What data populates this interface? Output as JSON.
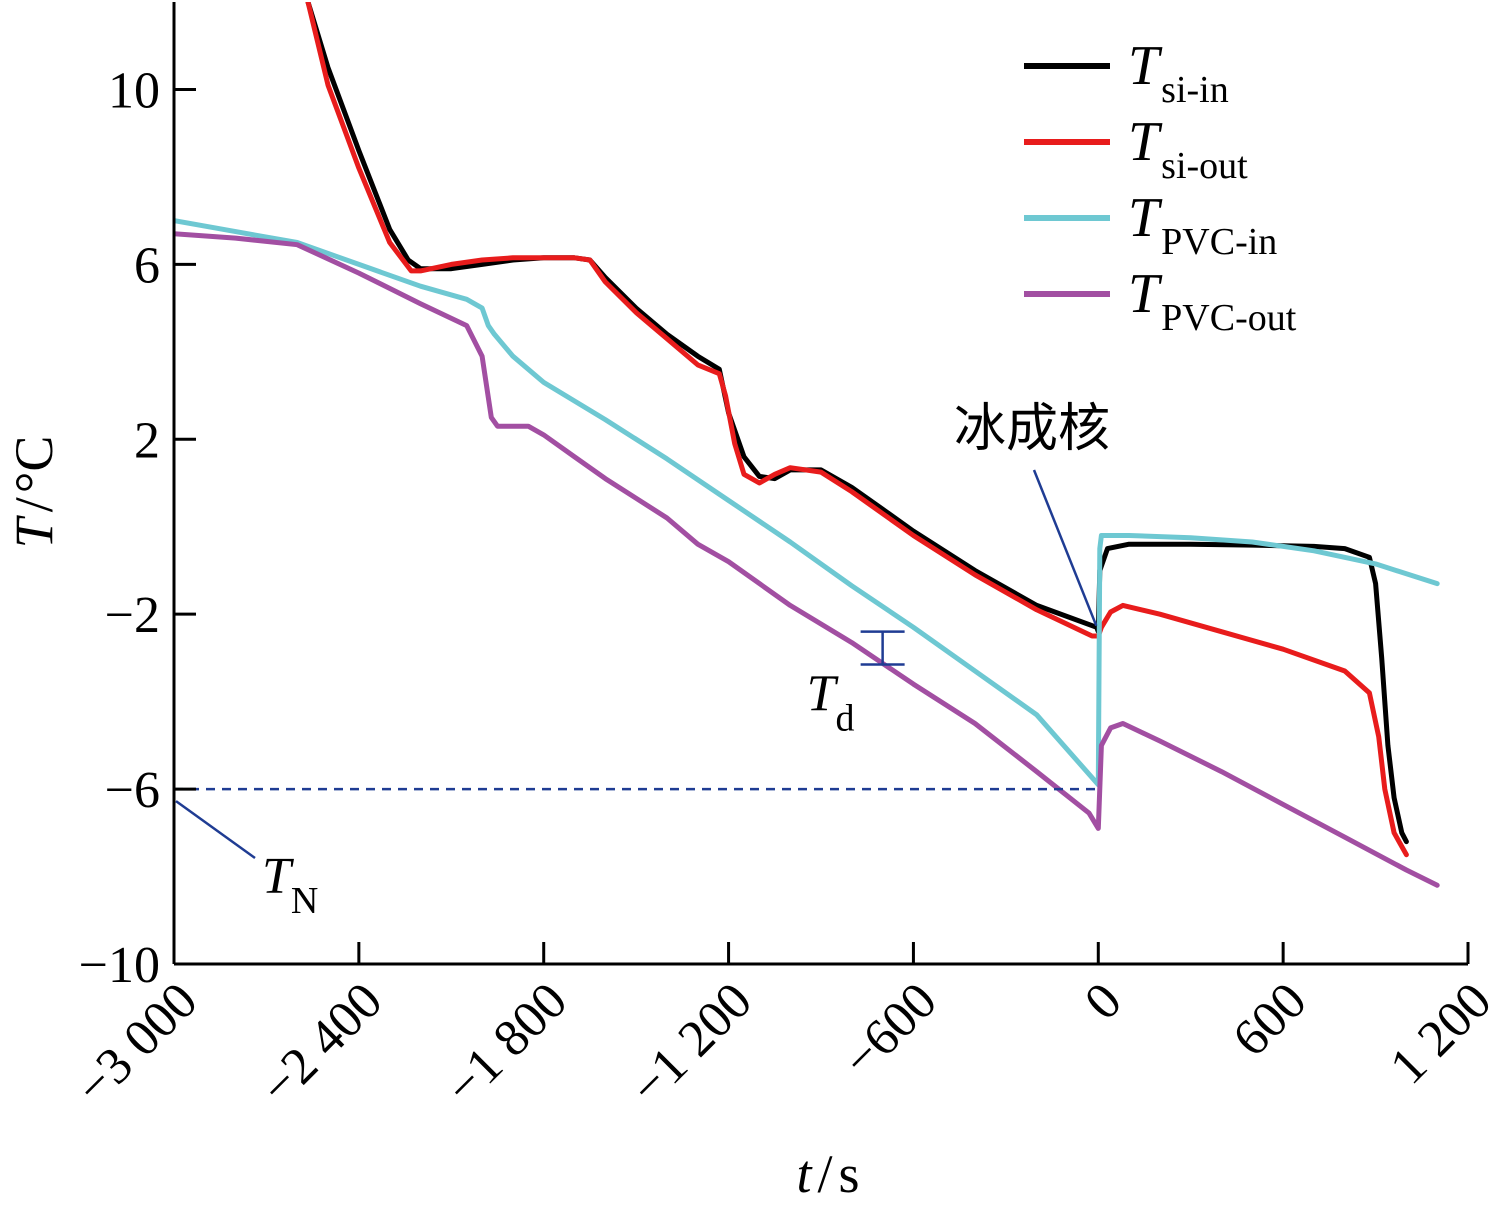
{
  "chart_data": {
    "type": "line",
    "xlabel": {
      "var": "t",
      "sep": "/",
      "unit": "s"
    },
    "ylabel": {
      "var": "T",
      "sep": "/",
      "unit": "°C"
    },
    "xlim": [
      -3000,
      1200
    ],
    "ylim": [
      -10,
      12
    ],
    "x_ticks": [
      -3000,
      -2400,
      -1800,
      -1200,
      -600,
      0,
      600,
      1200
    ],
    "x_tick_labels": [
      "−3 000",
      "−2 400",
      "−1 800",
      "−1 200",
      "−600",
      "0",
      "600",
      "1 200"
    ],
    "y_ticks": [
      -10,
      -6,
      -2,
      2,
      6,
      10
    ],
    "y_tick_labels": [
      "−10",
      "−6",
      "−2",
      "2",
      "6",
      "10"
    ],
    "grid": false,
    "legend_position": "top-right",
    "series": [
      {
        "key": "si_in",
        "name": {
          "main": "T",
          "sub": "si-in"
        },
        "color": "#000000",
        "points": [
          [
            -2565,
            12.0
          ],
          [
            -2500,
            10.5
          ],
          [
            -2400,
            8.6
          ],
          [
            -2300,
            6.8
          ],
          [
            -2240,
            6.1
          ],
          [
            -2200,
            5.9
          ],
          [
            -2100,
            5.9
          ],
          [
            -2000,
            6.0
          ],
          [
            -1900,
            6.1
          ],
          [
            -1800,
            6.15
          ],
          [
            -1700,
            6.15
          ],
          [
            -1650,
            6.1
          ],
          [
            -1600,
            5.7
          ],
          [
            -1500,
            5.0
          ],
          [
            -1400,
            4.4
          ],
          [
            -1300,
            3.9
          ],
          [
            -1230,
            3.6
          ],
          [
            -1200,
            2.6
          ],
          [
            -1150,
            1.6
          ],
          [
            -1100,
            1.15
          ],
          [
            -1050,
            1.1
          ],
          [
            -1000,
            1.3
          ],
          [
            -900,
            1.3
          ],
          [
            -800,
            0.9
          ],
          [
            -700,
            0.4
          ],
          [
            -600,
            -0.1
          ],
          [
            -400,
            -1.0
          ],
          [
            -200,
            -1.8
          ],
          [
            -5,
            -2.3
          ],
          [
            0,
            -2.4
          ],
          [
            5,
            -1.0
          ],
          [
            30,
            -0.5
          ],
          [
            100,
            -0.4
          ],
          [
            300,
            -0.4
          ],
          [
            500,
            -0.42
          ],
          [
            700,
            -0.45
          ],
          [
            800,
            -0.5
          ],
          [
            880,
            -0.7
          ],
          [
            900,
            -1.3
          ],
          [
            920,
            -3.0
          ],
          [
            940,
            -5.0
          ],
          [
            960,
            -6.2
          ],
          [
            985,
            -7.0
          ],
          [
            1000,
            -7.2
          ]
        ]
      },
      {
        "key": "si_out",
        "name": {
          "main": "T",
          "sub": "si-out"
        },
        "color": "#e81c1c",
        "points": [
          [
            -2565,
            12.0
          ],
          [
            -2500,
            10.1
          ],
          [
            -2400,
            8.2
          ],
          [
            -2300,
            6.5
          ],
          [
            -2230,
            5.85
          ],
          [
            -2200,
            5.85
          ],
          [
            -2100,
            6.0
          ],
          [
            -2000,
            6.1
          ],
          [
            -1900,
            6.15
          ],
          [
            -1800,
            6.15
          ],
          [
            -1700,
            6.15
          ],
          [
            -1650,
            6.1
          ],
          [
            -1600,
            5.6
          ],
          [
            -1500,
            4.9
          ],
          [
            -1400,
            4.3
          ],
          [
            -1300,
            3.7
          ],
          [
            -1230,
            3.5
          ],
          [
            -1210,
            3.0
          ],
          [
            -1180,
            1.9
          ],
          [
            -1150,
            1.2
          ],
          [
            -1100,
            1.0
          ],
          [
            -1050,
            1.2
          ],
          [
            -1000,
            1.35
          ],
          [
            -900,
            1.25
          ],
          [
            -800,
            0.8
          ],
          [
            -700,
            0.3
          ],
          [
            -600,
            -0.2
          ],
          [
            -400,
            -1.1
          ],
          [
            -200,
            -1.9
          ],
          [
            -20,
            -2.5
          ],
          [
            0,
            -2.5
          ],
          [
            10,
            -2.3
          ],
          [
            40,
            -1.95
          ],
          [
            80,
            -1.8
          ],
          [
            200,
            -2.0
          ],
          [
            400,
            -2.4
          ],
          [
            600,
            -2.8
          ],
          [
            800,
            -3.3
          ],
          [
            880,
            -3.8
          ],
          [
            910,
            -4.8
          ],
          [
            930,
            -6.0
          ],
          [
            960,
            -7.0
          ],
          [
            1000,
            -7.5
          ]
        ]
      },
      {
        "key": "pvc_in",
        "name": {
          "main": "T",
          "sub": "PVC-in"
        },
        "color": "#6ec8d2",
        "points": [
          [
            -3000,
            7.0
          ],
          [
            -2800,
            6.75
          ],
          [
            -2600,
            6.5
          ],
          [
            -2400,
            6.0
          ],
          [
            -2200,
            5.5
          ],
          [
            -2050,
            5.2
          ],
          [
            -2000,
            5.0
          ],
          [
            -1980,
            4.6
          ],
          [
            -1960,
            4.4
          ],
          [
            -1900,
            3.9
          ],
          [
            -1800,
            3.3
          ],
          [
            -1600,
            2.45
          ],
          [
            -1400,
            1.55
          ],
          [
            -1200,
            0.6
          ],
          [
            -1000,
            -0.35
          ],
          [
            -800,
            -1.35
          ],
          [
            -600,
            -2.3
          ],
          [
            -400,
            -3.3
          ],
          [
            -200,
            -4.3
          ],
          [
            0,
            -5.9
          ],
          [
            5,
            -0.5
          ],
          [
            10,
            -0.2
          ],
          [
            100,
            -0.2
          ],
          [
            300,
            -0.25
          ],
          [
            500,
            -0.35
          ],
          [
            700,
            -0.55
          ],
          [
            900,
            -0.85
          ],
          [
            1100,
            -1.3
          ]
        ]
      },
      {
        "key": "pvc_out",
        "name": {
          "main": "T",
          "sub": "PVC-out"
        },
        "color": "#a24fa2",
        "points": [
          [
            -3000,
            6.7
          ],
          [
            -2800,
            6.6
          ],
          [
            -2600,
            6.45
          ],
          [
            -2400,
            5.8
          ],
          [
            -2200,
            5.1
          ],
          [
            -2050,
            4.6
          ],
          [
            -2000,
            3.9
          ],
          [
            -1970,
            2.5
          ],
          [
            -1950,
            2.3
          ],
          [
            -1850,
            2.3
          ],
          [
            -1800,
            2.1
          ],
          [
            -1700,
            1.6
          ],
          [
            -1600,
            1.1
          ],
          [
            -1400,
            0.2
          ],
          [
            -1300,
            -0.4
          ],
          [
            -1200,
            -0.8
          ],
          [
            -1000,
            -1.8
          ],
          [
            -800,
            -2.65
          ],
          [
            -600,
            -3.6
          ],
          [
            -400,
            -4.5
          ],
          [
            -200,
            -5.6
          ],
          [
            -30,
            -6.55
          ],
          [
            0,
            -6.9
          ],
          [
            10,
            -5.0
          ],
          [
            40,
            -4.6
          ],
          [
            80,
            -4.5
          ],
          [
            200,
            -4.9
          ],
          [
            400,
            -5.6
          ],
          [
            600,
            -6.35
          ],
          [
            800,
            -7.1
          ],
          [
            1000,
            -7.85
          ],
          [
            1100,
            -8.2
          ]
        ]
      }
    ],
    "annotations": {
      "nucleation": {
        "text": "冰成核",
        "x": 0,
        "y": -2.4
      },
      "td": {
        "main": "T",
        "sub": "d",
        "x": -700,
        "y_top": -2.4,
        "y_bottom": -3.15
      },
      "tn": {
        "main": "T",
        "sub": "N",
        "x_range": [
          -3000,
          0
        ],
        "y": -6
      }
    },
    "colors": {
      "annotation": "#1f3c93",
      "axis": "#000000"
    }
  }
}
